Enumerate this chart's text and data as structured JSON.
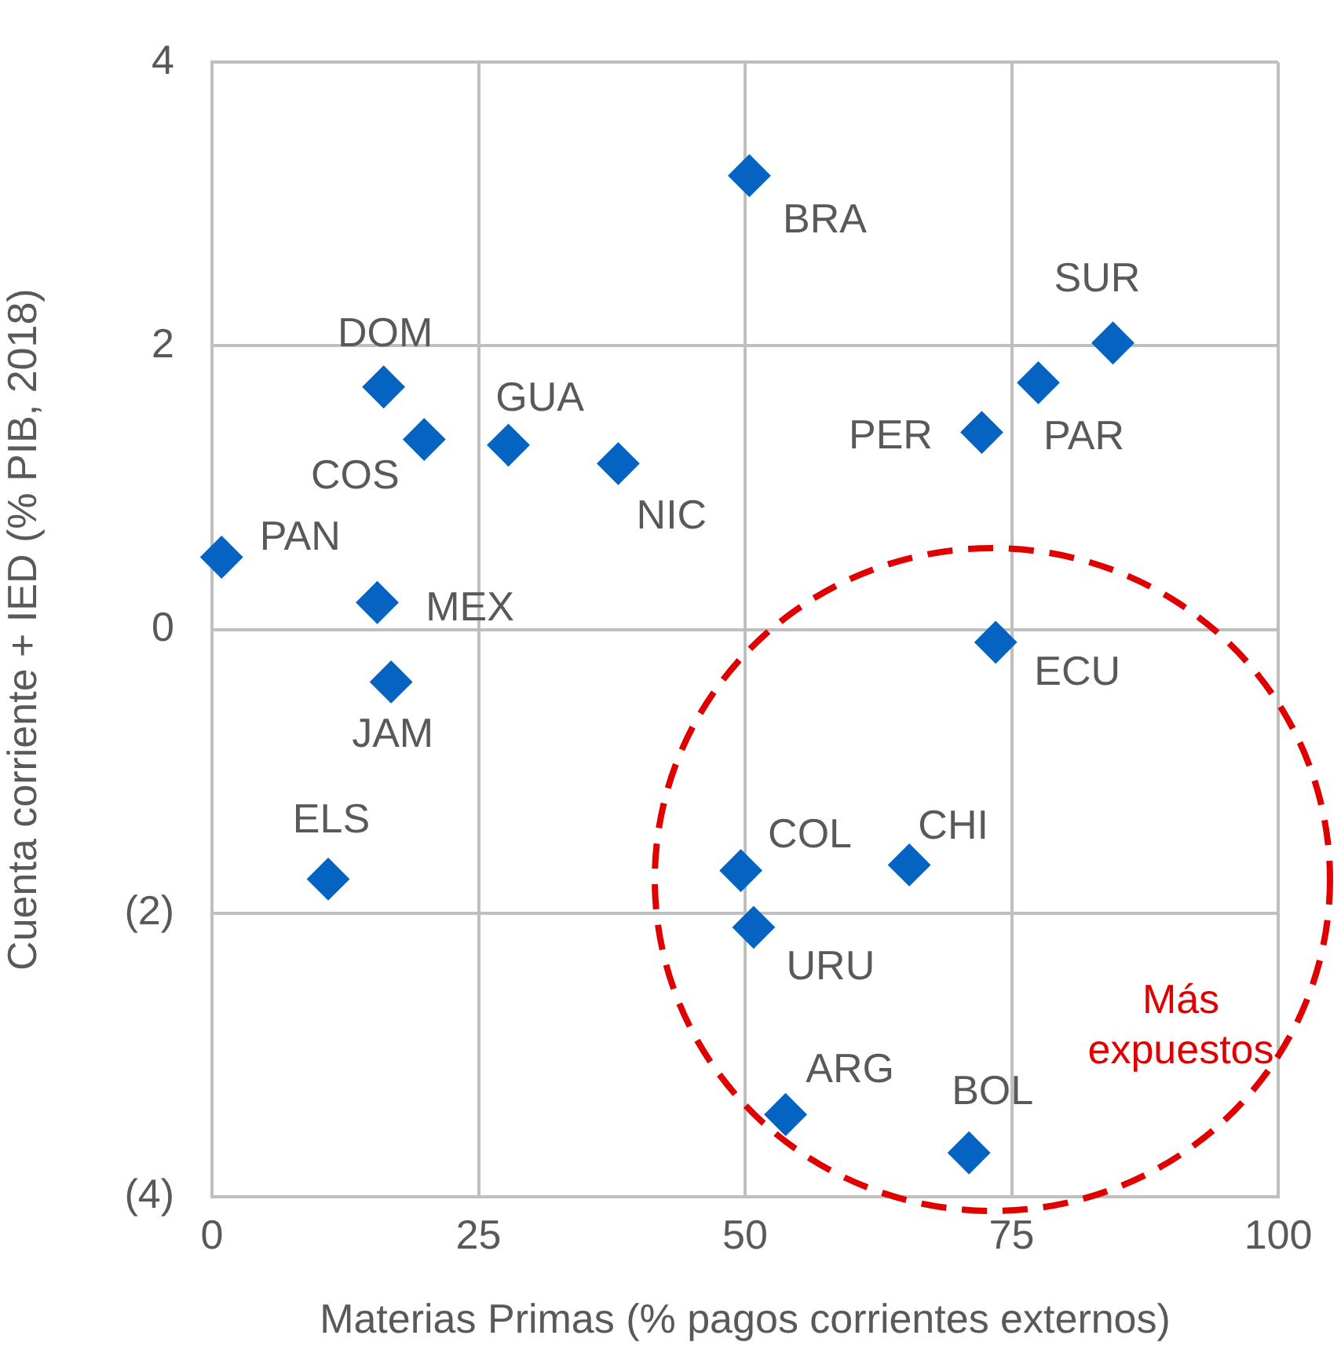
{
  "chart_data": {
    "type": "scatter",
    "xlabel": "Materias Primas (% pagos corrientes externos)",
    "ylabel": "Cuenta corriente + IED (% PIB, 2018)",
    "x": [
      50.4,
      84.5,
      77.5,
      72.2,
      16.1,
      19.9,
      27.8,
      38.1,
      0.9,
      15.5,
      16.8,
      73.5,
      10.9,
      49.6,
      65.4,
      50.8,
      53.8,
      71.0
    ],
    "values": [
      3.2,
      2.02,
      1.74,
      1.39,
      1.71,
      1.34,
      1.3,
      1.17,
      0.51,
      0.19,
      -0.37,
      -0.09,
      -1.76,
      -1.7,
      -1.66,
      -2.1,
      -3.42,
      -3.69
    ],
    "color": "#0563c1",
    "marker": "diamond",
    "grid": true,
    "legend": false,
    "xlim": [
      0,
      100
    ],
    "xticks": [
      0,
      25,
      50,
      75,
      100
    ],
    "ylim": [
      -4,
      4
    ],
    "yticks": [
      {
        "value": -4,
        "label": "(4)"
      },
      {
        "value": -2,
        "label": "(2)"
      },
      0,
      2,
      4
    ],
    "annotations": [
      {
        "text": "BRA",
        "x": 50.4,
        "y": 3.2
      },
      {
        "text": "SUR",
        "x": 84.5,
        "y": 2.02
      },
      {
        "text": "PAR",
        "x": 77.5,
        "y": 1.74
      },
      {
        "text": "PER",
        "x": 72.2,
        "y": 1.39
      },
      {
        "text": "DOM",
        "x": 16.1,
        "y": 1.71
      },
      {
        "text": "COS",
        "x": 19.9,
        "y": 1.34
      },
      {
        "text": "GUA",
        "x": 27.8,
        "y": 1.3
      },
      {
        "text": "NIC",
        "x": 38.1,
        "y": 1.17
      },
      {
        "text": "PAN",
        "x": 0.9,
        "y": 0.51
      },
      {
        "text": "MEX",
        "x": 15.5,
        "y": 0.19
      },
      {
        "text": "JAM",
        "x": 16.8,
        "y": -0.37
      },
      {
        "text": "ECU",
        "x": 73.5,
        "y": -0.09
      },
      {
        "text": "ELS",
        "x": 10.9,
        "y": -1.76
      },
      {
        "text": "COL",
        "x": 49.6,
        "y": -1.7
      },
      {
        "text": "CHI",
        "x": 65.4,
        "y": -1.66
      },
      {
        "text": "URU",
        "x": 50.8,
        "y": -2.1
      },
      {
        "text": "ARG",
        "x": 53.8,
        "y": -3.42
      },
      {
        "text": "BOL",
        "x": 71.0,
        "y": -3.69
      },
      "Más expuestos"
    ]
  }
}
